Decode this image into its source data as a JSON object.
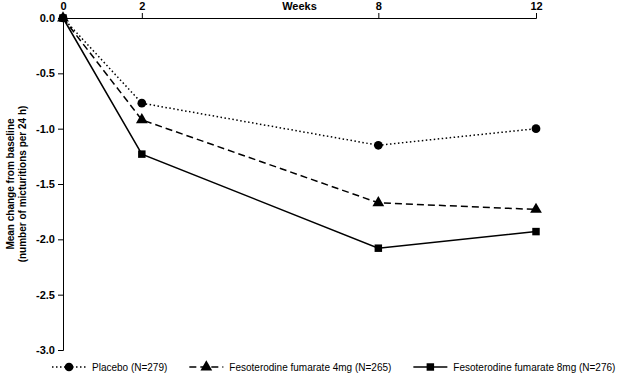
{
  "chart_data": {
    "type": "line",
    "x_label": "Weeks",
    "y_label": "Mean change from baseline (number of micturitions per 24 h)",
    "x": [
      0,
      2,
      8,
      12
    ],
    "xlim": [
      0,
      12
    ],
    "xticks": [
      0,
      2,
      8,
      12
    ],
    "ylim": [
      -3,
      0
    ],
    "yticks": [
      {
        "value": 0,
        "label": "0.0"
      },
      -0.5,
      {
        "value": -1,
        "label": "-1.0"
      },
      -1.5,
      {
        "value": -2,
        "label": "-2.0"
      },
      -2.5,
      {
        "value": -3,
        "label": "-3.0"
      }
    ],
    "grid": false,
    "legend": "bottom",
    "series": [
      {
        "name": "Placebo (N=279)",
        "color": "#000000",
        "marker": "circle",
        "line_style": "dotted",
        "values": [
          0,
          -0.77,
          -1.15,
          -1.0
        ]
      },
      {
        "name": "Fesoterodine fumarate 4mg (N=265)",
        "color": "#000000",
        "marker": "triangle",
        "line_style": "dashed",
        "values": [
          0,
          -0.92,
          -1.67,
          -1.73
        ]
      },
      {
        "name": "Fesoterodine fumarate 8mg (N=276)",
        "color": "#000000",
        "marker": "square",
        "line_style": "solid",
        "values": [
          0,
          -1.23,
          -2.08,
          -1.93
        ]
      }
    ]
  }
}
